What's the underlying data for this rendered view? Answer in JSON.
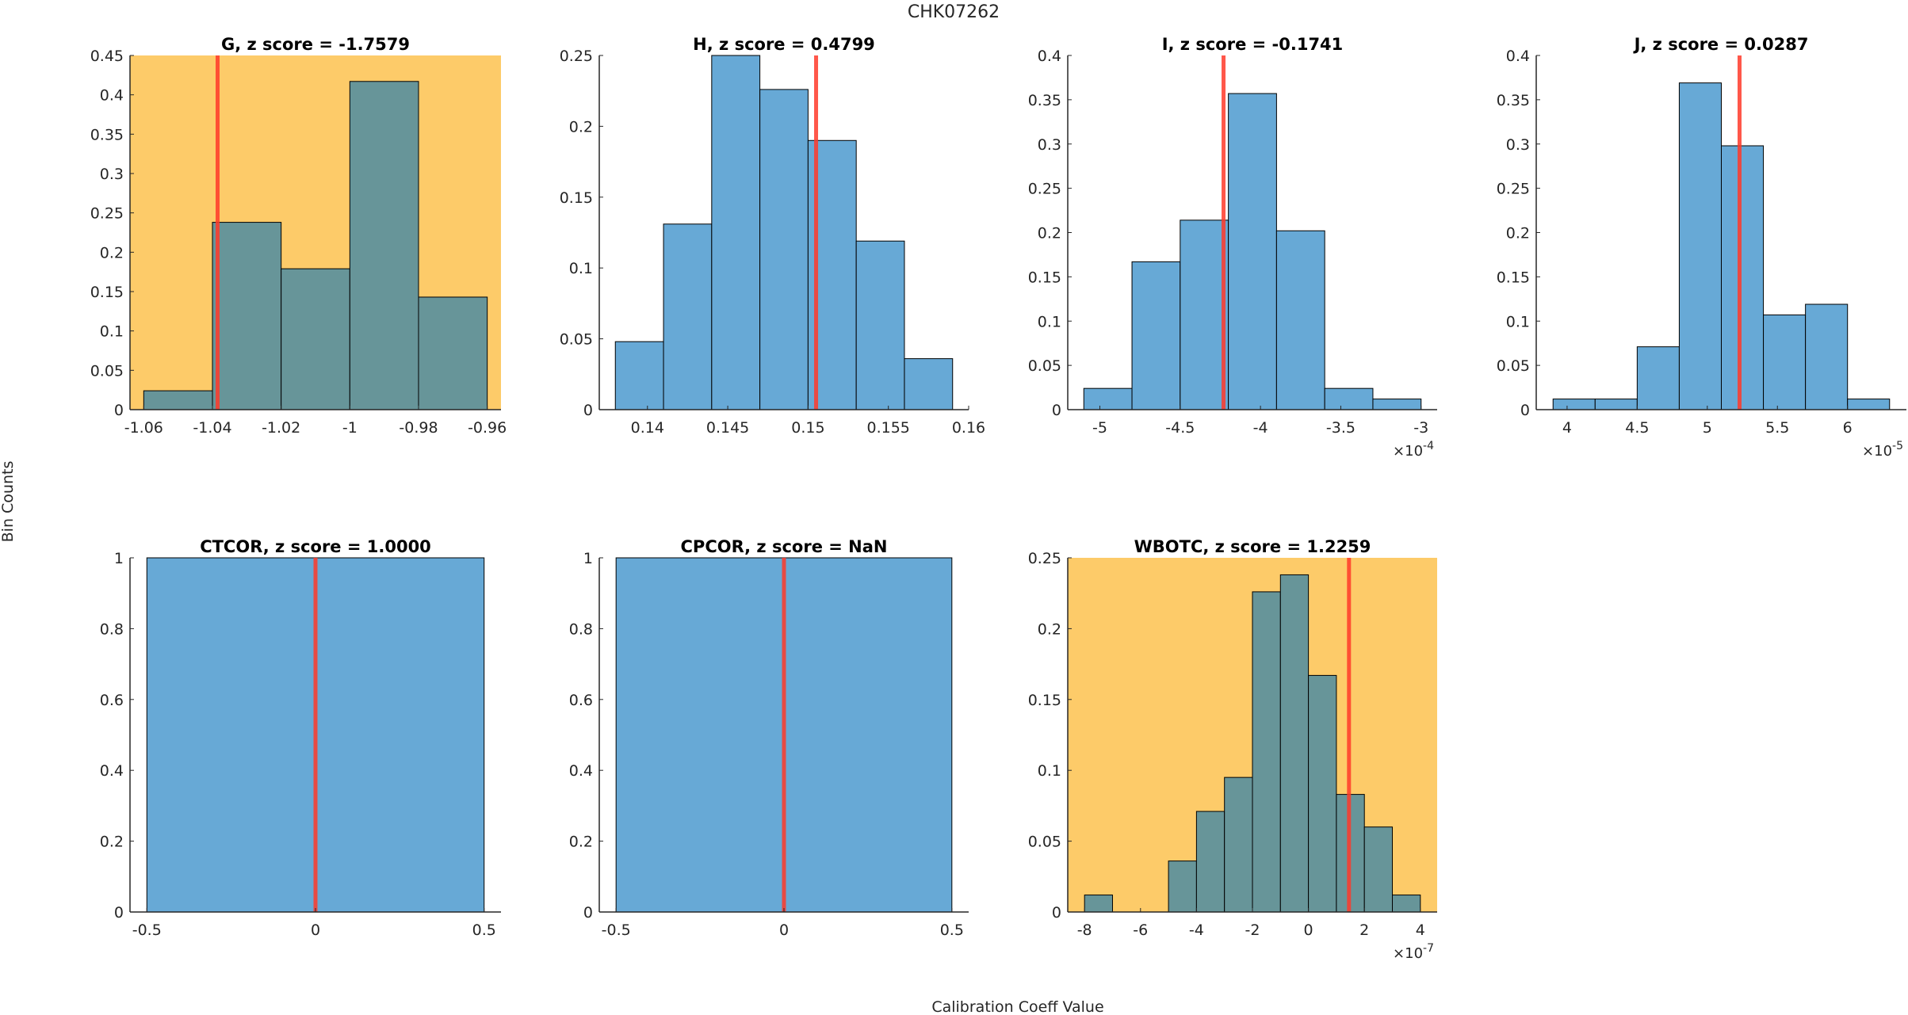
{
  "figure": {
    "title": "CHK07262",
    "ylabel": "Bin Counts",
    "xlabel": "Calibration Coeff Value"
  },
  "colors": {
    "highlight_bg": "#FDCB69",
    "highlight_bar": "#679599",
    "normal_bar": "#67A9D6",
    "marker_line": "#FF3A2A",
    "axis": "#262626"
  },
  "chart_data": [
    {
      "type": "bar",
      "title": "G, z score = -1.7579",
      "coefficient": "G",
      "z_score": "-1.7579",
      "highlighted": true,
      "bin_edges": [
        -1.06,
        -1.04,
        -1.02,
        -1.0,
        -0.98,
        -0.96
      ],
      "values": [
        0.024,
        0.238,
        0.179,
        0.417,
        0.143
      ],
      "marker_x": -1.0385,
      "xlim": [
        -1.064,
        -0.956
      ],
      "ylim": [
        0,
        0.45
      ],
      "xticks": [
        -1.06,
        -1.04,
        -1.02,
        -1,
        -0.98,
        -0.96
      ],
      "xtick_labels": [
        "-1.06",
        "-1.04",
        "-1.02",
        "-1",
        "-0.98",
        "-0.96"
      ],
      "yticks": [
        0,
        0.05,
        0.1,
        0.15,
        0.2,
        0.25,
        0.3,
        0.35,
        0.4,
        0.45
      ],
      "ytick_labels": [
        "0",
        "0.05",
        "0.1",
        "0.15",
        "0.2",
        "0.25",
        "0.3",
        "0.35",
        "0.4",
        "0.45"
      ],
      "exponent": ""
    },
    {
      "type": "bar",
      "title": "H, z score = 0.4799",
      "coefficient": "H",
      "z_score": "0.4799",
      "highlighted": false,
      "bin_edges": [
        0.138,
        0.141,
        0.144,
        0.147,
        0.15,
        0.153,
        0.156,
        0.159
      ],
      "values": [
        0.048,
        0.131,
        0.25,
        0.226,
        0.19,
        0.119,
        0.036
      ],
      "marker_x": 0.1505,
      "xlim": [
        0.137,
        0.16
      ],
      "ylim": [
        0,
        0.25
      ],
      "xticks": [
        0.14,
        0.145,
        0.15,
        0.155,
        0.16
      ],
      "xtick_labels": [
        "0.14",
        "0.145",
        "0.15",
        "0.155",
        "0.16"
      ],
      "yticks": [
        0,
        0.05,
        0.1,
        0.15,
        0.2,
        0.25
      ],
      "ytick_labels": [
        "0",
        "0.05",
        "0.1",
        "0.15",
        "0.2",
        "0.25"
      ],
      "exponent": ""
    },
    {
      "type": "bar",
      "title": "I, z score = -0.1741",
      "coefficient": "I",
      "z_score": "-0.1741",
      "highlighted": false,
      "bin_edges": [
        -5.1,
        -4.8,
        -4.5,
        -4.2,
        -3.9,
        -3.6,
        -3.3,
        -3.0
      ],
      "values": [
        0.024,
        0.167,
        0.214,
        0.357,
        0.202,
        0.024,
        0.012
      ],
      "marker_x": -4.23,
      "xlim": [
        -5.2,
        -2.9
      ],
      "ylim": [
        0,
        0.4
      ],
      "xticks": [
        -5,
        -4.5,
        -4,
        -3.5,
        -3
      ],
      "xtick_labels": [
        "-5",
        "-4.5",
        "-4",
        "-3.5",
        "-3"
      ],
      "yticks": [
        0,
        0.05,
        0.1,
        0.15,
        0.2,
        0.25,
        0.3,
        0.35,
        0.4
      ],
      "ytick_labels": [
        "0",
        "0.05",
        "0.1",
        "0.15",
        "0.2",
        "0.25",
        "0.3",
        "0.35",
        "0.4"
      ],
      "exponent": "-4"
    },
    {
      "type": "bar",
      "title": "J, z score = 0.0287",
      "coefficient": "J",
      "z_score": "0.0287",
      "highlighted": false,
      "bin_edges": [
        3.9,
        4.2,
        4.5,
        4.8,
        5.1,
        5.4,
        5.7,
        6.0,
        6.3
      ],
      "values": [
        0.012,
        0.012,
        0.071,
        0.369,
        0.298,
        0.107,
        0.119,
        0.012
      ],
      "marker_x": 5.23,
      "xlim": [
        3.78,
        6.42
      ],
      "ylim": [
        0,
        0.4
      ],
      "xticks": [
        4,
        4.5,
        5,
        5.5,
        6
      ],
      "xtick_labels": [
        "4",
        "4.5",
        "5",
        "5.5",
        "6"
      ],
      "yticks": [
        0,
        0.05,
        0.1,
        0.15,
        0.2,
        0.25,
        0.3,
        0.35,
        0.4
      ],
      "ytick_labels": [
        "0",
        "0.05",
        "0.1",
        "0.15",
        "0.2",
        "0.25",
        "0.3",
        "0.35",
        "0.4"
      ],
      "exponent": "-5"
    },
    {
      "type": "bar",
      "title": "CTCOR, z score = 1.0000",
      "coefficient": "CTCOR",
      "z_score": "1.0000",
      "highlighted": false,
      "bin_edges": [
        -0.5,
        0.5
      ],
      "values": [
        1
      ],
      "marker_x": 0,
      "xlim": [
        -0.55,
        0.55
      ],
      "ylim": [
        0,
        1
      ],
      "xticks": [
        -0.5,
        0,
        0.5
      ],
      "xtick_labels": [
        "-0.5",
        "0",
        "0.5"
      ],
      "yticks": [
        0,
        0.2,
        0.4,
        0.6,
        0.8,
        1
      ],
      "ytick_labels": [
        "0",
        "0.2",
        "0.4",
        "0.6",
        "0.8",
        "1"
      ],
      "exponent": ""
    },
    {
      "type": "bar",
      "title": "CPCOR, z score = NaN",
      "coefficient": "CPCOR",
      "z_score": "NaN",
      "highlighted": false,
      "bin_edges": [
        -0.5,
        0.5
      ],
      "values": [
        1
      ],
      "marker_x": 0,
      "xlim": [
        -0.55,
        0.55
      ],
      "ylim": [
        0,
        1
      ],
      "xticks": [
        -0.5,
        0,
        0.5
      ],
      "xtick_labels": [
        "-0.5",
        "0",
        "0.5"
      ],
      "yticks": [
        0,
        0.2,
        0.4,
        0.6,
        0.8,
        1
      ],
      "ytick_labels": [
        "0",
        "0.2",
        "0.4",
        "0.6",
        "0.8",
        "1"
      ],
      "exponent": ""
    },
    {
      "type": "bar",
      "title": "WBOTC, z score = 1.2259",
      "coefficient": "WBOTC",
      "z_score": "1.2259",
      "highlighted": true,
      "bin_edges": [
        -8,
        -7,
        -6,
        -5,
        -4,
        -3,
        -2,
        -1,
        0,
        1,
        2,
        3,
        4
      ],
      "values": [
        0.012,
        0,
        0,
        0.036,
        0.071,
        0.095,
        0.226,
        0.238,
        0.167,
        0.083,
        0.06,
        0.012
      ],
      "marker_x": 1.45,
      "xlim": [
        -8.6,
        4.6
      ],
      "ylim": [
        0,
        0.25
      ],
      "xticks": [
        -8,
        -6,
        -4,
        -2,
        0,
        2,
        4
      ],
      "xtick_labels": [
        "-8",
        "-6",
        "-4",
        "-2",
        "0",
        "2",
        "4"
      ],
      "yticks": [
        0,
        0.05,
        0.1,
        0.15,
        0.2,
        0.25
      ],
      "ytick_labels": [
        "0",
        "0.05",
        "0.1",
        "0.15",
        "0.2",
        "0.25"
      ],
      "exponent": "-7"
    }
  ]
}
